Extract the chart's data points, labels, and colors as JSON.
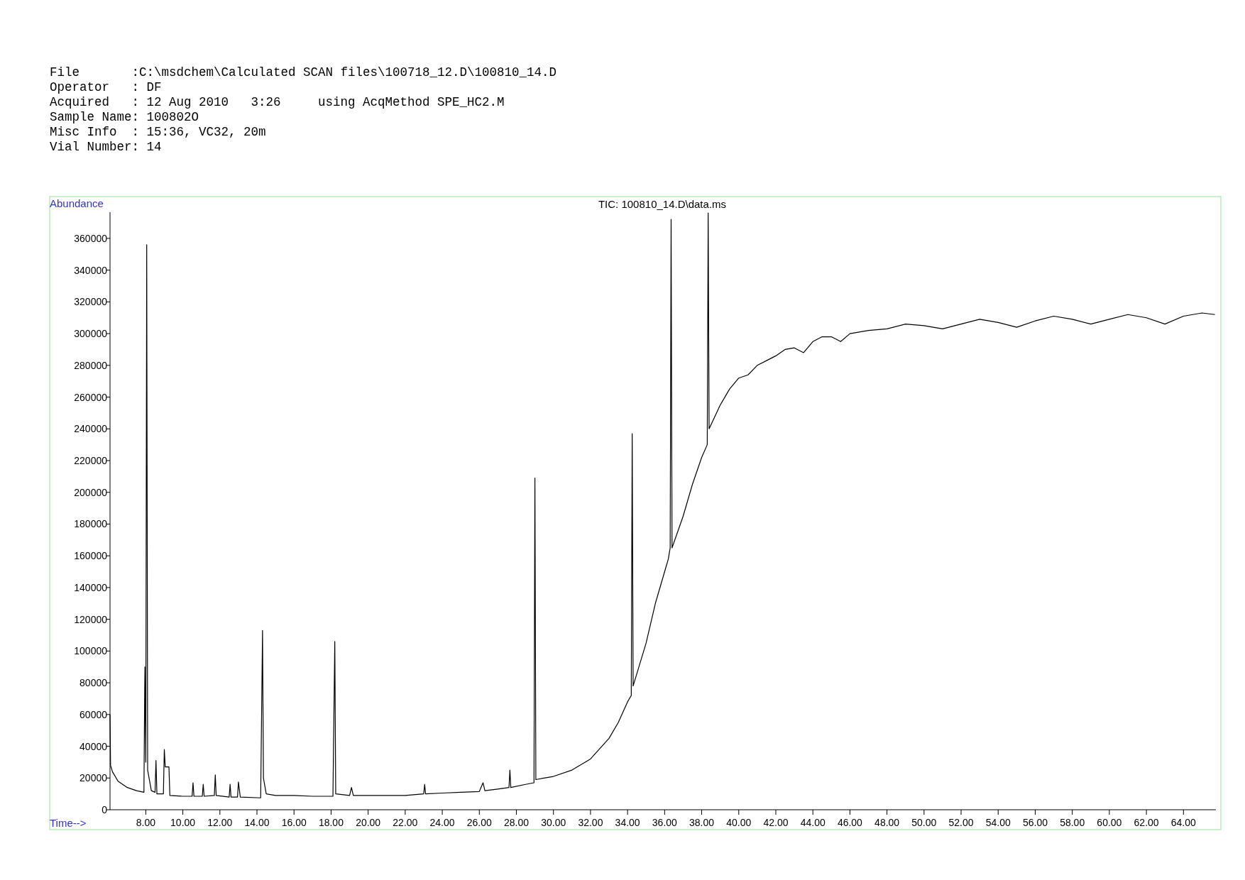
{
  "chart_data": {
    "type": "line",
    "title": "TIC: 100810_14.D\\data.ms",
    "xlabel": "Time-->",
    "ylabel": "Abundance",
    "annotations": [
      "File       :C:\\msdchem\\Calculated SCAN files\\100718_12.D\\100810_14.D",
      "Operator   : DF",
      "Acquired   : 12 Aug 2010   3:26     using AcqMethod SPE_HC2.M",
      "Sample Name: 100802O",
      "Misc Info  : 15:36, VC32, 20m",
      "Vial Number: 14"
    ],
    "xlim": [
      6.07,
      65.75
    ],
    "ylim": [
      0,
      376500
    ],
    "xticks": [
      {
        "value": 8,
        "label": "8.00"
      },
      {
        "value": 10,
        "label": "10.00"
      },
      {
        "value": 12,
        "label": "12.00"
      },
      {
        "value": 14,
        "label": "14.00"
      },
      {
        "value": 16,
        "label": "16.00"
      },
      {
        "value": 18,
        "label": "18.00"
      },
      {
        "value": 20,
        "label": "20.00"
      },
      {
        "value": 22,
        "label": "22.00"
      },
      {
        "value": 24,
        "label": "24.00"
      },
      {
        "value": 26,
        "label": "26.00"
      },
      {
        "value": 28,
        "label": "28.00"
      },
      {
        "value": 30,
        "label": "30.00"
      },
      {
        "value": 32,
        "label": "32.00"
      },
      {
        "value": 34,
        "label": "34.00"
      },
      {
        "value": 36,
        "label": "36.00"
      },
      {
        "value": 38,
        "label": "38.00"
      },
      {
        "value": 40,
        "label": "40.00"
      },
      {
        "value": 42,
        "label": "42.00"
      },
      {
        "value": 44,
        "label": "44.00"
      },
      {
        "value": 46,
        "label": "46.00"
      },
      {
        "value": 48,
        "label": "48.00"
      },
      {
        "value": 50,
        "label": "50.00"
      },
      {
        "value": 52,
        "label": "52.00"
      },
      {
        "value": 54,
        "label": "54.00"
      },
      {
        "value": 56,
        "label": "56.00"
      },
      {
        "value": 58,
        "label": "58.00"
      },
      {
        "value": 60,
        "label": "60.00"
      },
      {
        "value": 62,
        "label": "62.00"
      },
      {
        "value": 64,
        "label": "64.00"
      }
    ],
    "yticks": [
      0,
      20000,
      40000,
      60000,
      80000,
      100000,
      120000,
      140000,
      160000,
      180000,
      200000,
      220000,
      240000,
      260000,
      280000,
      300000,
      320000,
      340000,
      360000
    ],
    "marker": "none",
    "line_style": "solid",
    "series": [
      {
        "color": "#000000",
        "x": [
          6.07,
          6.1,
          6.2,
          6.5,
          7,
          7.5,
          7.9,
          7.95,
          8.0,
          8.05,
          8.1,
          8.3,
          8.5,
          8.55,
          8.6,
          8.95,
          9.0,
          9.05,
          9.25,
          9.3,
          10,
          10.5,
          10.55,
          10.6,
          11.05,
          11.1,
          11.15,
          11.7,
          11.75,
          11.8,
          12.5,
          12.55,
          12.6,
          12.95,
          13.0,
          13.1,
          14.2,
          14.3,
          14.35,
          14.5,
          15,
          16,
          17,
          18.1,
          18.2,
          18.25,
          19,
          19.1,
          19.2,
          20,
          22,
          23,
          23.05,
          23.1,
          24,
          25,
          26,
          26.2,
          26.3,
          27,
          27.6,
          27.65,
          27.7,
          28.5,
          28.95,
          29.0,
          29.05,
          30,
          31,
          32,
          33,
          33.5,
          34.0,
          34.2,
          34.25,
          34.3,
          35,
          35.5,
          36,
          36.2,
          36.3,
          36.35,
          36.4,
          37,
          37.5,
          38,
          38.3,
          38.35,
          38.4,
          39,
          39.5,
          40,
          40.5,
          41,
          41.5,
          42,
          42.5,
          43,
          43.5,
          44,
          44.5,
          45,
          45.5,
          46,
          47,
          48,
          49,
          50,
          51,
          52,
          53,
          54,
          55,
          56,
          57,
          58,
          59,
          60,
          61,
          62,
          63,
          64,
          65,
          65.7
        ],
        "values": [
          60000,
          28000,
          24000,
          18000,
          14000,
          12000,
          11000,
          90000,
          30000,
          356000,
          25000,
          12000,
          11000,
          31000,
          10000,
          10000,
          38000,
          27000,
          27000,
          9000,
          8500,
          8500,
          17000,
          8500,
          8500,
          16000,
          8500,
          9000,
          22000,
          9000,
          8000,
          16000,
          8000,
          8000,
          17500,
          8000,
          7500,
          113000,
          20000,
          10000,
          9000,
          9000,
          8500,
          8500,
          106000,
          10000,
          9000,
          14000,
          9000,
          9000,
          9000,
          10000,
          16000,
          10000,
          10500,
          11000,
          11500,
          17000,
          12000,
          13000,
          14000,
          25000,
          14000,
          16000,
          17000,
          209000,
          19000,
          21000,
          25000,
          32000,
          45000,
          55000,
          68000,
          72000,
          237000,
          78000,
          105000,
          130000,
          150000,
          158000,
          165000,
          372000,
          165000,
          185000,
          205000,
          222000,
          230000,
          376000,
          240000,
          255000,
          265000,
          272000,
          274000,
          280000,
          283000,
          286000,
          290000,
          291000,
          288000,
          295000,
          298000,
          298000,
          295000,
          300000,
          302000,
          303000,
          306000,
          305000,
          303000,
          306000,
          309000,
          307000,
          304000,
          308000,
          311000,
          309000,
          306000,
          309000,
          312000,
          310000,
          306000,
          311000,
          313000,
          312000
        ]
      }
    ]
  }
}
